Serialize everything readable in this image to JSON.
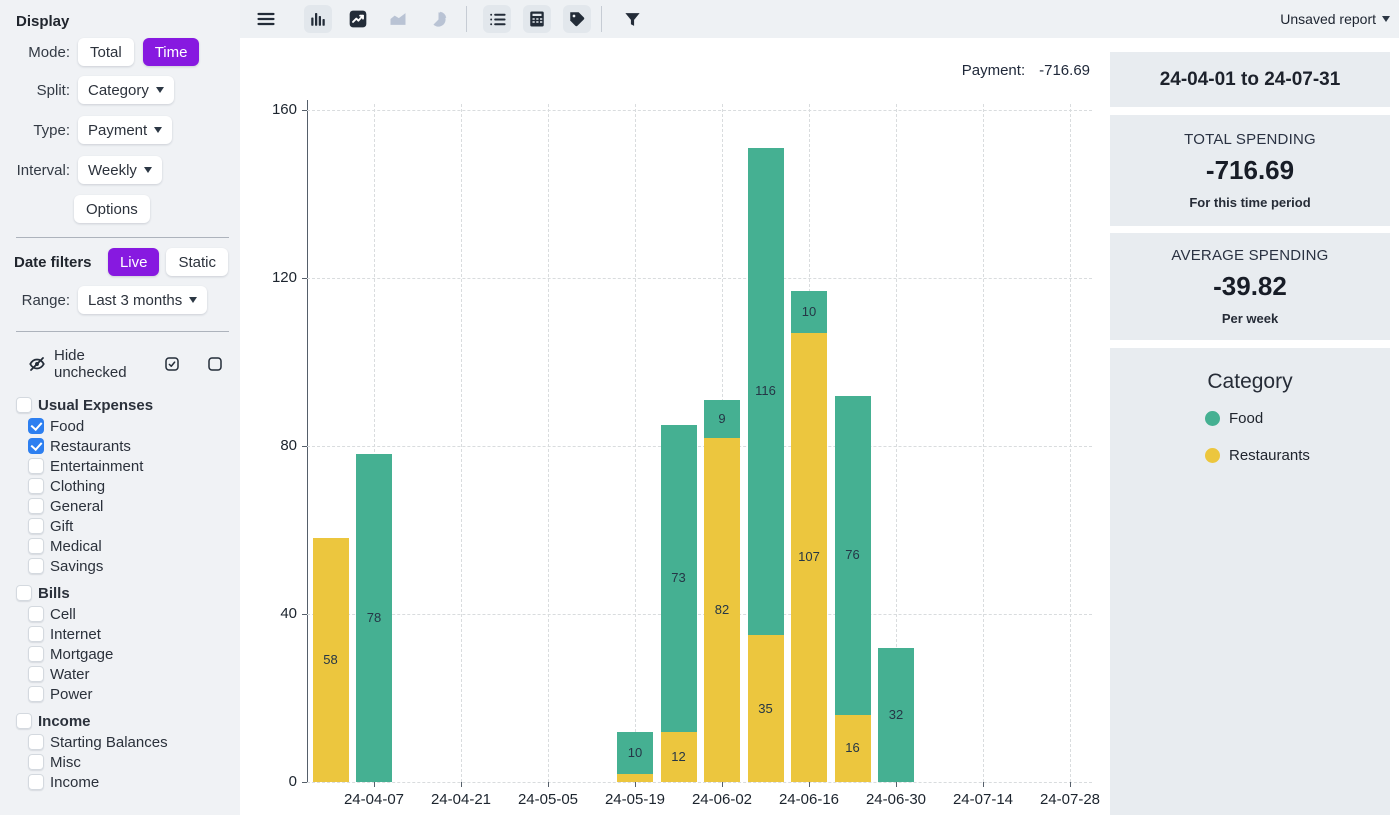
{
  "display": {
    "section_title": "Display",
    "mode_label": "Mode:",
    "mode_options": [
      "Total",
      "Time"
    ],
    "mode_selected": "Time",
    "split_label": "Split:",
    "split_value": "Category",
    "type_label": "Type:",
    "type_value": "Payment",
    "interval_label": "Interval:",
    "interval_value": "Weekly",
    "options_button": "Options"
  },
  "date_filters": {
    "section_title": "Date filters",
    "mode_options": [
      "Live",
      "Static"
    ],
    "mode_selected": "Live",
    "range_label": "Range:",
    "range_value": "Last 3 months"
  },
  "category_filter": {
    "hide_unchecked_label": "Hide unchecked",
    "groups": [
      {
        "label": "Usual Expenses",
        "checked": false,
        "items": [
          {
            "label": "Food",
            "checked": true
          },
          {
            "label": "Restaurants",
            "checked": true
          },
          {
            "label": "Entertainment",
            "checked": false
          },
          {
            "label": "Clothing",
            "checked": false
          },
          {
            "label": "General",
            "checked": false
          },
          {
            "label": "Gift",
            "checked": false
          },
          {
            "label": "Medical",
            "checked": false
          },
          {
            "label": "Savings",
            "checked": false
          }
        ]
      },
      {
        "label": "Bills",
        "checked": false,
        "items": [
          {
            "label": "Cell",
            "checked": false
          },
          {
            "label": "Internet",
            "checked": false
          },
          {
            "label": "Mortgage",
            "checked": false
          },
          {
            "label": "Water",
            "checked": false
          },
          {
            "label": "Power",
            "checked": false
          }
        ]
      },
      {
        "label": "Income",
        "checked": false,
        "items": [
          {
            "label": "Starting Balances",
            "checked": false
          },
          {
            "label": "Misc",
            "checked": false
          },
          {
            "label": "Income",
            "checked": false
          }
        ]
      }
    ]
  },
  "toolbar": {
    "icons": [
      "menu",
      "bar-chart",
      "line-chart",
      "area-chart",
      "pie-chart",
      "list",
      "calculator",
      "tag",
      "filter"
    ],
    "report_menu_label": "Unsaved report"
  },
  "chart_header": {
    "label": "Payment:",
    "value": "-716.69"
  },
  "summary": {
    "date_range": "24-04-01 to 24-07-31",
    "total": {
      "title": "TOTAL SPENDING",
      "value": "-716.69",
      "subtitle": "For this time period"
    },
    "average": {
      "title": "AVERAGE SPENDING",
      "value": "-39.82",
      "subtitle": "Per week"
    },
    "legend": {
      "title": "Category",
      "items": [
        {
          "label": "Food",
          "color": "#45b092"
        },
        {
          "label": "Restaurants",
          "color": "#ecc63e"
        }
      ]
    }
  },
  "chart_data": {
    "type": "bar",
    "stacked": true,
    "title": "Payment: -716.69",
    "x": [
      "24-03-31",
      "24-04-07",
      "24-04-14",
      "24-04-21",
      "24-04-28",
      "24-05-05",
      "24-05-12",
      "24-05-19",
      "24-05-26",
      "24-06-02",
      "24-06-09",
      "24-06-16",
      "24-06-23",
      "24-06-30",
      "24-07-07",
      "24-07-14",
      "24-07-21",
      "24-07-28"
    ],
    "tick_start": 1,
    "tick_every": 2,
    "series": [
      {
        "name": "Restaurants",
        "color": "#ecc63e",
        "values": [
          58,
          0,
          0,
          0,
          0,
          0,
          0,
          2,
          12,
          82,
          35,
          107,
          16,
          0,
          0,
          0,
          0,
          0
        ]
      },
      {
        "name": "Food",
        "color": "#45b092",
        "values": [
          0,
          78,
          0,
          0,
          0,
          0,
          0,
          10,
          73,
          9,
          116,
          10,
          76,
          32,
          0,
          0,
          0,
          0
        ]
      }
    ],
    "ylim": [
      0,
      160
    ],
    "yticks": [
      0,
      40,
      80,
      120,
      160
    ],
    "grid": true,
    "label_min": 9,
    "legend_position": "right"
  },
  "colors": {
    "accent": "#8719e0",
    "food": "#45b092",
    "restaurants": "#ecc63e",
    "checkbox_checked": "#2d7ff0"
  }
}
